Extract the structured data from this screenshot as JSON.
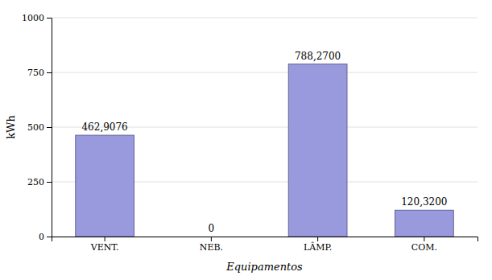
{
  "chart_data": {
    "type": "bar",
    "categories": [
      "VENT.",
      "NEB.",
      "LÂMP.",
      "COM."
    ],
    "values": [
      462.9076,
      0,
      788.27,
      120.32
    ],
    "value_labels": [
      "462,9076",
      "0",
      "788,2700",
      "120,3200"
    ],
    "data_labels": true,
    "color": "#9999dd",
    "xlabel": "Equipamentos",
    "ylabel": "kWh",
    "ylim": [
      0,
      1000
    ],
    "yticks": [
      0,
      250,
      500,
      750,
      1000
    ],
    "grid": true
  }
}
